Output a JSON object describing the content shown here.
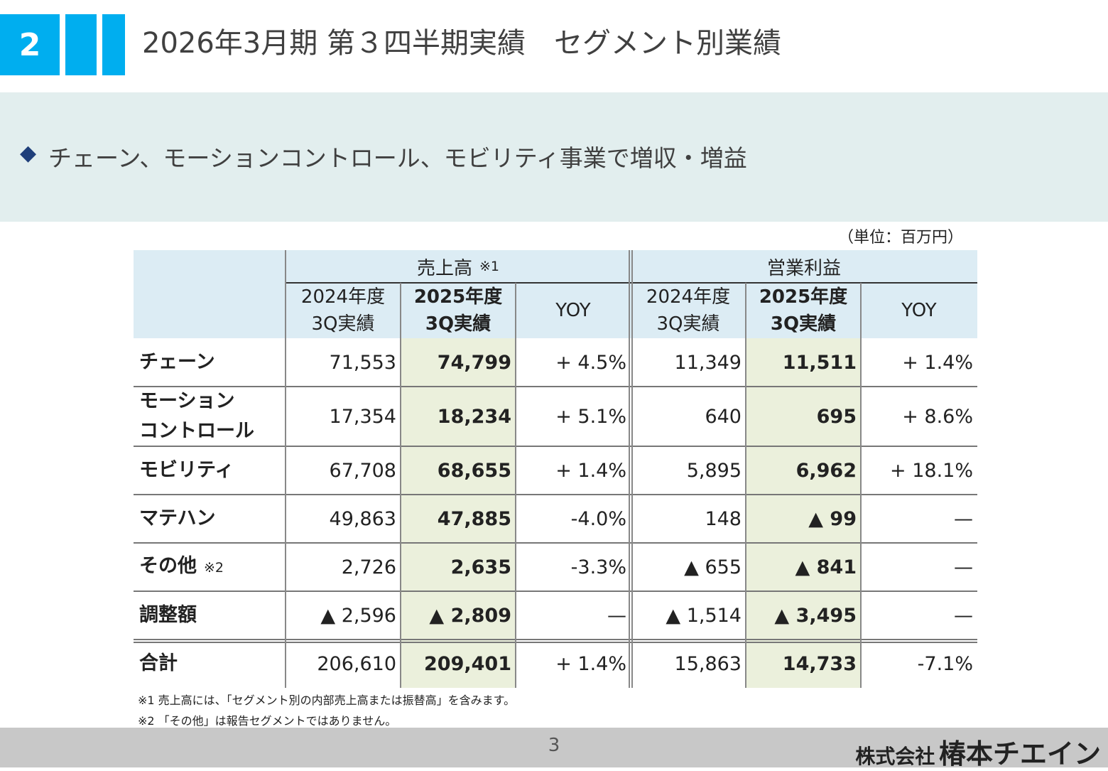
{
  "header": {
    "number": "2",
    "title": "2026年3月期 第３四半期実績　セグメント別業績"
  },
  "summary": {
    "bullet": "◆",
    "text": "チェーン、モーションコントロール、モビリティ事業で増収・増益"
  },
  "unit_note": "（単位：百万円）",
  "table": {
    "groups": [
      {
        "label": "売上高",
        "note": "※1"
      },
      {
        "label": "営業利益"
      }
    ],
    "columns": [
      [
        "2024年度",
        "3Q実績"
      ],
      [
        "2025年度",
        "3Q実績"
      ],
      [
        "YOY"
      ],
      [
        "2024年度",
        "3Q実績"
      ],
      [
        "2025年度",
        "3Q実績"
      ],
      [
        "YOY"
      ]
    ],
    "rows": [
      {
        "label": [
          "チェーン"
        ],
        "cells": [
          "71,553",
          "74,799",
          "+ 4.5%",
          "11,349",
          "11,511",
          "+ 1.4%"
        ]
      },
      {
        "label": [
          "モーション",
          "コントロール"
        ],
        "cells": [
          "17,354",
          "18,234",
          "+ 5.1%",
          "640",
          "695",
          "+ 8.6%"
        ]
      },
      {
        "label": [
          "モビリティ"
        ],
        "cells": [
          "67,708",
          "68,655",
          "+ 1.4%",
          "5,895",
          "6,962",
          "+ 18.1%"
        ]
      },
      {
        "label": [
          "マテハン"
        ],
        "cells": [
          "49,863",
          "47,885",
          "-4.0%",
          "148",
          "▲ 99",
          "—"
        ]
      },
      {
        "label": [
          "その他"
        ],
        "note": "※2",
        "cells": [
          "2,726",
          "2,635",
          "-3.3%",
          "▲ 655",
          "▲ 841",
          "—"
        ]
      },
      {
        "label": [
          "調整額"
        ],
        "cells": [
          "▲ 2,596",
          "▲ 2,809",
          "—",
          "▲ 1,514",
          "▲ 3,495",
          "—"
        ]
      },
      {
        "label": [
          "合計"
        ],
        "cells": [
          "206,610",
          "209,401",
          "+ 1.4%",
          "15,863",
          "14,733",
          "-7.1%"
        ]
      }
    ]
  },
  "footnotes": [
    "※1 売上高には、「セグメント別の内部売上高または振替高」を含みます。",
    "※2 「その他」は報告セグメントではありません。"
  ],
  "footer": {
    "page": "3",
    "company_prefix": "株式会社",
    "company_name": "椿本チエイン"
  }
}
